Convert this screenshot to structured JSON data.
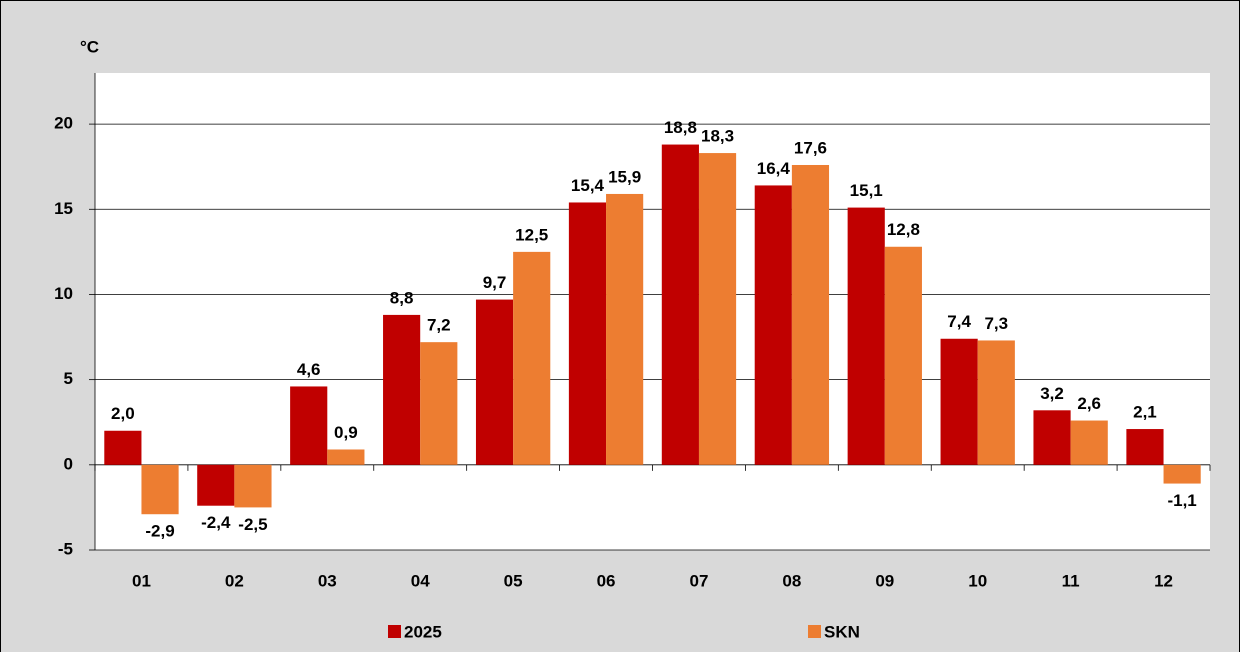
{
  "chart_data": {
    "type": "bar",
    "y_label": "°C",
    "categories": [
      "01",
      "02",
      "03",
      "04",
      "05",
      "06",
      "07",
      "08",
      "09",
      "10",
      "11",
      "12"
    ],
    "series": [
      {
        "name": "2025",
        "color": "#c00000",
        "values": [
          2.0,
          -2.4,
          4.6,
          8.8,
          9.7,
          15.4,
          18.8,
          16.4,
          15.1,
          7.4,
          3.2,
          2.1
        ],
        "value_labels": [
          "2,0",
          "-2,4",
          "4,6",
          "8,8",
          "9,7",
          "15,4",
          "18,8",
          "16,4",
          "15,1",
          "7,4",
          "3,2",
          "2,1"
        ]
      },
      {
        "name": "SKN",
        "color": "#ed7d31",
        "values": [
          -2.9,
          -2.5,
          0.9,
          7.2,
          12.5,
          15.9,
          18.3,
          17.6,
          12.8,
          7.3,
          2.6,
          -1.1
        ],
        "value_labels": [
          "-2,9",
          "-2,5",
          "0,9",
          "7,2",
          "12,5",
          "15,9",
          "18,3",
          "17,6",
          "12,8",
          "7,3",
          "2,6",
          "-1,1"
        ]
      }
    ],
    "ylim": [
      -5,
      23
    ],
    "yticks": [
      -5,
      0,
      5,
      10,
      15,
      20
    ],
    "grid": true,
    "legend": "bottom"
  }
}
